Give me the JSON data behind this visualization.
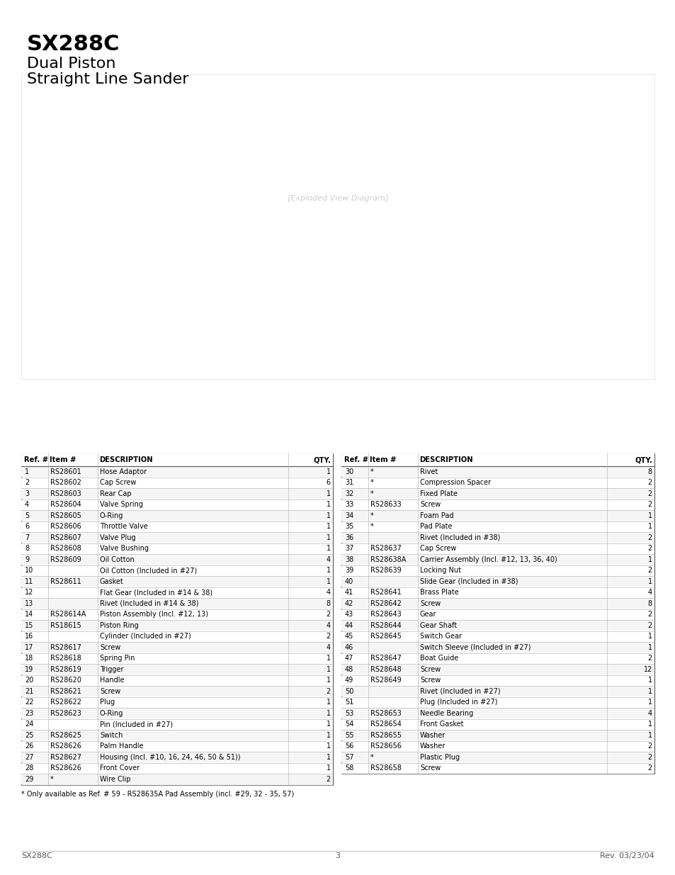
{
  "title_bold": "SX288C",
  "title_sub1": "Dual Piston",
  "title_sub2": "Straight Line Sander",
  "page_number": "3",
  "footer_left": "SX288C",
  "footer_right": "Rev. 03/23/04",
  "footnote": "* Only available as Ref. # 59 - RS28635A Pad Assembly (incl. #29, 32 - 35, 57)",
  "table_left": {
    "headers": [
      "Ref. #",
      "Item #",
      "DESCRIPTION",
      "QTY."
    ],
    "rows": [
      [
        "1",
        "RS28601",
        "Hose Adaptor",
        "1"
      ],
      [
        "2",
        "RS28602",
        "Cap Screw",
        "6"
      ],
      [
        "3",
        "RS28603",
        "Rear Cap",
        "1"
      ],
      [
        "4",
        "RS28604",
        "Valve Spring",
        "1"
      ],
      [
        "5",
        "RS28605",
        "O-Ring",
        "1"
      ],
      [
        "6",
        "RS28606",
        "Throttle Valve",
        "1"
      ],
      [
        "7",
        "RS28607",
        "Valve Plug",
        "1"
      ],
      [
        "8",
        "RS28608",
        "Valve Bushing",
        "1"
      ],
      [
        "9",
        "RS28609",
        "Oil Cotton",
        "4"
      ],
      [
        "10",
        "",
        "Oil Cotton (Included in #27)",
        "1"
      ],
      [
        "11",
        "RS28611",
        "Gasket",
        "1"
      ],
      [
        "12",
        "",
        "Flat Gear (Included in #14 & 38)",
        "4"
      ],
      [
        "13",
        "",
        "Rivet (Included in #14 & 38)",
        "8"
      ],
      [
        "14",
        "RS28614A",
        "Piston Assembly (Incl. #12, 13)",
        "2"
      ],
      [
        "15",
        "RS18615",
        "Piston Ring",
        "4"
      ],
      [
        "16",
        "",
        "Cylinder (Included in #27)",
        "2"
      ],
      [
        "17",
        "RS28617",
        "Screw",
        "4"
      ],
      [
        "18",
        "RS28618",
        "Spring Pin",
        "1"
      ],
      [
        "19",
        "RS28619",
        "Trigger",
        "1"
      ],
      [
        "20",
        "RS28620",
        "Handle",
        "1"
      ],
      [
        "21",
        "RS28621",
        "Screw",
        "2"
      ],
      [
        "22",
        "RS28622",
        "Plug",
        "1"
      ],
      [
        "23",
        "RS28623",
        "O-Ring",
        "1"
      ],
      [
        "24",
        "",
        "Pin (Included in #27)",
        "1"
      ],
      [
        "25",
        "RS28625",
        "Switch",
        "1"
      ],
      [
        "26",
        "RS28626",
        "Palm Handle",
        "1"
      ],
      [
        "27",
        "RS28627",
        "Housing (Incl. #10, 16, 24, 46, 50 & 51))",
        "1"
      ],
      [
        "28",
        "RS28626",
        "Front Cover",
        "1"
      ],
      [
        "29",
        "*",
        "Wire Clip",
        "2"
      ]
    ]
  },
  "table_right": {
    "headers": [
      "Ref. #",
      "Item #",
      "DESCRIPTION",
      "QTY."
    ],
    "rows": [
      [
        "30",
        "*",
        "Rivet",
        "8"
      ],
      [
        "31",
        "*",
        "Compression Spacer",
        "2"
      ],
      [
        "32",
        "*",
        "Fixed Plate",
        "2"
      ],
      [
        "33",
        "RS28633",
        "Screw",
        "2"
      ],
      [
        "34",
        "*",
        "Foam Pad",
        "1"
      ],
      [
        "35",
        "*",
        "Pad Plate",
        "1"
      ],
      [
        "36",
        "",
        "Rivet (Included in #38)",
        "2"
      ],
      [
        "37",
        "RS28637",
        "Cap Screw",
        "2"
      ],
      [
        "38",
        "RS28638A",
        "Carrier Assembly (Incl. #12, 13, 36, 40)",
        "1"
      ],
      [
        "39",
        "RS28639",
        "Locking Nut",
        "2"
      ],
      [
        "40",
        "",
        "Slide Gear (Included in #38)",
        "1"
      ],
      [
        "41",
        "RS28641",
        "Brass Plate",
        "4"
      ],
      [
        "42",
        "RS28642",
        "Screw",
        "8"
      ],
      [
        "43",
        "RS28643",
        "Gear",
        "2"
      ],
      [
        "44",
        "RS28644",
        "Gear Shaft",
        "2"
      ],
      [
        "45",
        "RS28645",
        "Switch Gear",
        "1"
      ],
      [
        "46",
        "",
        "Switch Sleeve (Included in #27)",
        "1"
      ],
      [
        "47",
        "RS28647",
        "Boat Guide",
        "2"
      ],
      [
        "48",
        "RS28648",
        "Screw",
        "12"
      ],
      [
        "49",
        "RS28649",
        "Screw",
        "1"
      ],
      [
        "50",
        "",
        "Rivet (Included in #27)",
        "1"
      ],
      [
        "51",
        "",
        "Plug (Included in #27)",
        "1"
      ],
      [
        "53",
        "RS28653",
        "Needle Bearing",
        "4"
      ],
      [
        "54",
        "RS28654",
        "Front Gasket",
        "1"
      ],
      [
        "55",
        "RS28655",
        "Washer",
        "1"
      ],
      [
        "56",
        "RS28656",
        "Washer",
        "2"
      ],
      [
        "57",
        "*",
        "Plastic Plug",
        "2"
      ],
      [
        "58",
        "RS28658",
        "Screw",
        "2"
      ]
    ]
  },
  "bg_color": "#ffffff",
  "text_color": "#000000",
  "header_bg": "#d0d0d0",
  "row_bg_even": "#ffffff",
  "row_bg_odd": "#f0f0f0",
  "border_color": "#000000"
}
